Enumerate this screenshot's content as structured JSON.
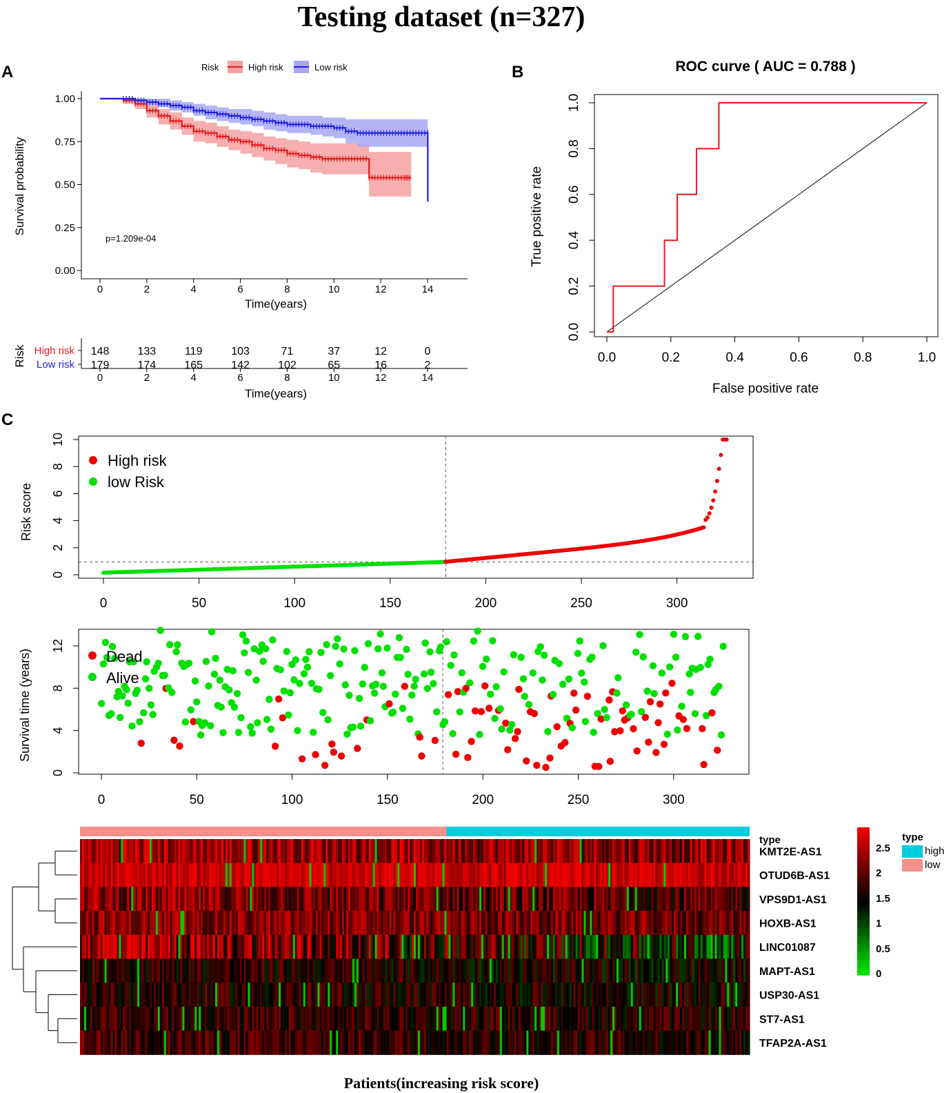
{
  "title": "Testing dataset (n=327)",
  "panel_labels": [
    "A",
    "B",
    "C"
  ],
  "chart_data": [
    {
      "id": "km",
      "type": "line",
      "legend_title": "Risk",
      "legend": [
        {
          "name": "High risk",
          "color": "#e31a1c"
        },
        {
          "name": "Low risk",
          "color": "#1f1fe0"
        }
      ],
      "ylabel": "Survival probability",
      "xlabel": "Time(years)",
      "xlim": [
        0,
        14
      ],
      "ylim": [
        0,
        1
      ],
      "xticks": [
        "0",
        "2",
        "4",
        "6",
        "8",
        "10",
        "12",
        "14"
      ],
      "yticks": [
        "0.00",
        "0.25",
        "0.50",
        "0.75",
        "1.00"
      ],
      "pvalue": "p=1.209e-04",
      "series": [
        {
          "name": "High risk",
          "color": "#e31a1c",
          "x": [
            0,
            0.5,
            1,
            1.5,
            2,
            2.5,
            3,
            3.5,
            4,
            4.5,
            5,
            5.5,
            6,
            6.5,
            7,
            7.5,
            8,
            8.5,
            9,
            9.5,
            10,
            10.5,
            11,
            11.5,
            12,
            12.5,
            13,
            13.3
          ],
          "y": [
            1,
            1,
            0.99,
            0.97,
            0.93,
            0.9,
            0.87,
            0.84,
            0.81,
            0.8,
            0.78,
            0.76,
            0.75,
            0.73,
            0.71,
            0.7,
            0.68,
            0.67,
            0.66,
            0.65,
            0.65,
            0.65,
            0.65,
            0.54,
            0.54,
            0.54,
            0.54,
            0.54
          ],
          "lower": [
            1,
            1,
            0.97,
            0.94,
            0.89,
            0.85,
            0.82,
            0.79,
            0.75,
            0.74,
            0.72,
            0.7,
            0.68,
            0.66,
            0.64,
            0.62,
            0.6,
            0.59,
            0.57,
            0.56,
            0.56,
            0.56,
            0.56,
            0.43,
            0.43,
            0.43,
            0.43,
            0.43
          ],
          "upper": [
            1,
            1,
            1,
            1,
            0.97,
            0.94,
            0.92,
            0.89,
            0.87,
            0.86,
            0.84,
            0.82,
            0.81,
            0.8,
            0.78,
            0.77,
            0.76,
            0.75,
            0.74,
            0.74,
            0.74,
            0.74,
            0.74,
            0.69,
            0.69,
            0.69,
            0.69,
            0.69
          ]
        },
        {
          "name": "Low risk",
          "color": "#1f1fe0",
          "x": [
            0,
            0.5,
            1,
            1.5,
            2,
            2.5,
            3,
            3.5,
            4,
            4.5,
            5,
            5.5,
            6,
            6.5,
            7,
            7.5,
            8,
            8.5,
            9,
            9.5,
            10,
            10.5,
            11,
            11.5,
            12,
            12.5,
            13,
            13.5,
            14,
            14.01
          ],
          "y": [
            1,
            1,
            1,
            0.99,
            0.98,
            0.97,
            0.96,
            0.95,
            0.93,
            0.92,
            0.91,
            0.9,
            0.89,
            0.88,
            0.87,
            0.86,
            0.85,
            0.85,
            0.84,
            0.84,
            0.83,
            0.81,
            0.8,
            0.8,
            0.8,
            0.8,
            0.8,
            0.8,
            0.8,
            0.4
          ],
          "lower": [
            1,
            1,
            1,
            0.98,
            0.96,
            0.95,
            0.93,
            0.92,
            0.9,
            0.88,
            0.87,
            0.86,
            0.85,
            0.84,
            0.82,
            0.81,
            0.8,
            0.8,
            0.79,
            0.78,
            0.77,
            0.74,
            0.72,
            0.72,
            0.72,
            0.72,
            0.72,
            0.72,
            0.72,
            0.4
          ],
          "upper": [
            1,
            1,
            1,
            1,
            1,
            1,
            0.99,
            0.98,
            0.97,
            0.96,
            0.95,
            0.94,
            0.94,
            0.93,
            0.92,
            0.91,
            0.9,
            0.9,
            0.9,
            0.89,
            0.89,
            0.88,
            0.88,
            0.88,
            0.88,
            0.88,
            0.88,
            0.88,
            0.88,
            0.4
          ]
        }
      ]
    },
    {
      "id": "risktable",
      "type": "table",
      "ylabel": "Risk",
      "xlabel": "Time(years)",
      "xticks": [
        "0",
        "2",
        "4",
        "6",
        "8",
        "10",
        "12",
        "14"
      ],
      "rows": [
        {
          "name": "High risk",
          "color": "#e31a1c",
          "values": [
            "148",
            "133",
            "119",
            "103",
            "71",
            "37",
            "12",
            "0"
          ]
        },
        {
          "name": "Low risk",
          "color": "#1f1fe0",
          "values": [
            "179",
            "174",
            "165",
            "142",
            "102",
            "65",
            "16",
            "2"
          ]
        }
      ]
    },
    {
      "id": "roc",
      "type": "line",
      "title": "ROC curve ( AUC =  0.788 )",
      "xlabel": "False positive rate",
      "ylabel": "True positive rate",
      "xlim": [
        0,
        1
      ],
      "ylim": [
        0,
        1
      ],
      "xticks": [
        "0.0",
        "0.2",
        "0.4",
        "0.6",
        "0.8",
        "1.0"
      ],
      "yticks": [
        "0.0",
        "0.2",
        "0.4",
        "0.6",
        "0.8",
        "1.0"
      ],
      "series": [
        {
          "name": "ROC",
          "color": "#e31a1c",
          "x": [
            0,
            0.02,
            0.02,
            0.18,
            0.18,
            0.22,
            0.22,
            0.28,
            0.28,
            0.35,
            0.35,
            1.0
          ],
          "y": [
            0,
            0,
            0.2,
            0.2,
            0.4,
            0.4,
            0.6,
            0.6,
            0.8,
            0.8,
            1.0,
            1.0
          ]
        }
      ]
    },
    {
      "id": "riskscore",
      "type": "scatter",
      "ylabel": "Risk score",
      "xlim": [
        0,
        327
      ],
      "ylim": [
        0,
        10
      ],
      "xticks": [
        "0",
        "50",
        "100",
        "150",
        "200",
        "250",
        "300"
      ],
      "yticks": [
        "0",
        "2",
        "4",
        "6",
        "8",
        "10"
      ],
      "cutoff_index": 179,
      "cutoff_value": 0.95,
      "legend": [
        {
          "name": "High risk",
          "color": "#ee0000"
        },
        {
          "name": "low Risk",
          "color": "#00e000"
        }
      ],
      "n": 327
    },
    {
      "id": "survtime",
      "type": "scatter",
      "ylabel": "Survival time (years)",
      "xlim": [
        0,
        327
      ],
      "ylim": [
        0,
        14
      ],
      "xticks": [
        "0",
        "50",
        "100",
        "150",
        "200",
        "250",
        "300"
      ],
      "yticks": [
        "0",
        "4",
        "8",
        "12"
      ],
      "cutoff_index": 179,
      "legend": [
        {
          "name": "Dead",
          "color": "#ee0000"
        },
        {
          "name": "Alive",
          "color": "#00e000"
        }
      ],
      "n": 327
    },
    {
      "id": "heatmap",
      "type": "heatmap",
      "xlabel": "Patients(increasing risk score)",
      "type_legend_title": "type",
      "type_levels": [
        {
          "name": "high",
          "color": "#00ccdd"
        },
        {
          "name": "low",
          "color": "#f4908a"
        }
      ],
      "type_label": "type",
      "genes": [
        "KMT2E-AS1",
        "OTUD6B-AS1",
        "VPS9D1-AS1",
        "HOXB-AS1",
        "LINC01087",
        "MAPT-AS1",
        "USP30-AS1",
        "ST7-AS1",
        "TFAP2A-AS1"
      ],
      "colorbar_ticks": [
        "2.5",
        "2",
        "1.5",
        "1",
        "0.5",
        "0"
      ],
      "colors": {
        "low": "#00ee00",
        "mid": "#000000",
        "high": "#ee0000"
      },
      "n": 327
    }
  ]
}
